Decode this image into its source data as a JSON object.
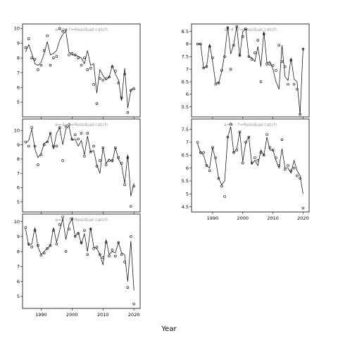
{
  "figure": {
    "xlabel": "Year"
  },
  "chart_data": [
    {
      "type": "line",
      "title": "a=2 : f=Residual catch",
      "xlim": [
        1984,
        2022
      ],
      "ylim": [
        4,
        10.3
      ],
      "xticks": [
        1990,
        2000,
        2010,
        2020
      ],
      "yticks": [
        5,
        6,
        7,
        8,
        9,
        10
      ],
      "x": [
        1985,
        1986,
        1987,
        1988,
        1989,
        1990,
        1991,
        1992,
        1993,
        1994,
        1995,
        1996,
        1997,
        1998,
        1999,
        2000,
        2001,
        2002,
        2003,
        2004,
        2005,
        2006,
        2007,
        2008,
        2009,
        2010,
        2011,
        2012,
        2013,
        2014,
        2015,
        2016,
        2017,
        2018,
        2019,
        2020
      ],
      "series": [
        {
          "style": "points",
          "values": [
            8.7,
            9.3,
            8.0,
            7.9,
            7.2,
            7.5,
            8.5,
            9.5,
            7.5,
            8.0,
            8.1,
            10.0,
            9.8,
            9.9,
            8.2,
            8.3,
            8.2,
            8.0,
            7.5,
            8.0,
            7.2,
            7.3,
            6.2,
            4.9,
            6.6,
            6.5,
            6.6,
            6.7,
            7.4,
            7.1,
            6.3,
            5.3,
            6.9,
            4.3,
            5.8,
            5.9
          ]
        },
        {
          "style": "line",
          "values": [
            8.4,
            8.9,
            8.3,
            7.6,
            7.5,
            7.7,
            8.3,
            9.1,
            8.2,
            8.3,
            8.5,
            9.2,
            9.6,
            9.8,
            8.4,
            8.2,
            8.2,
            8.1,
            8.0,
            7.6,
            8.5,
            7.5,
            7.6,
            5.6,
            7.2,
            6.8,
            6.5,
            6.7,
            7.5,
            6.9,
            6.5,
            5.1,
            7.3,
            4.6,
            5.8,
            6.0
          ]
        }
      ]
    },
    {
      "type": "line",
      "title": "a=4 : f=Residual catch",
      "xlim": [
        1983,
        2022
      ],
      "ylim": [
        5.1,
        8.8
      ],
      "xticks": [
        1990,
        2000,
        2010,
        2020
      ],
      "yticks": [
        5.5,
        6.0,
        6.5,
        7.0,
        7.5,
        8.0,
        8.5
      ],
      "x": [
        1985,
        1986,
        1987,
        1988,
        1989,
        1990,
        1991,
        1992,
        1993,
        1994,
        1995,
        1996,
        1997,
        1998,
        1999,
        2000,
        2001,
        2002,
        2003,
        2004,
        2005,
        2006,
        2007,
        2008,
        2009,
        2010,
        2011,
        2012,
        2013,
        2014,
        2015,
        2016,
        2017,
        2018,
        2019,
        2020
      ],
      "series": [
        {
          "style": "points",
          "values": [
            8.0,
            8.0,
            7.05,
            7.1,
            7.9,
            7.45,
            6.4,
            6.45,
            6.95,
            7.5,
            8.65,
            7.0,
            7.95,
            8.7,
            7.55,
            8.3,
            8.6,
            7.5,
            7.4,
            7.65,
            8.15,
            6.5,
            8.4,
            7.2,
            7.2,
            7.15,
            6.95,
            7.95,
            7.3,
            7.1,
            6.4,
            7.35,
            6.4,
            6.2,
            5.2,
            7.8
          ]
        },
        {
          "style": "line",
          "values": [
            8.0,
            8.0,
            7.05,
            7.1,
            8.0,
            7.3,
            6.45,
            6.45,
            6.9,
            7.6,
            8.7,
            7.6,
            8.0,
            8.7,
            7.5,
            8.5,
            8.6,
            7.5,
            7.45,
            7.3,
            7.9,
            7.1,
            8.5,
            7.25,
            7.3,
            7.0,
            6.5,
            6.2,
            7.95,
            6.7,
            6.55,
            7.45,
            6.6,
            6.5,
            5.2,
            7.85
          ]
        }
      ]
    },
    {
      "type": "line",
      "title": "a=3 : f=Residual catch",
      "xlim": [
        1984,
        2022
      ],
      "ylim": [
        4.3,
        10.8
      ],
      "xticks": [
        1990,
        2000,
        2010,
        2020
      ],
      "yticks": [
        5,
        6,
        7,
        8,
        9,
        10
      ],
      "x": [
        1985,
        1986,
        1987,
        1988,
        1989,
        1990,
        1991,
        1992,
        1993,
        1994,
        1995,
        1996,
        1997,
        1998,
        1999,
        2000,
        2001,
        2002,
        2003,
        2004,
        2005,
        2006,
        2007,
        2008,
        2009,
        2010,
        2011,
        2012,
        2013,
        2014,
        2015,
        2016,
        2017,
        2018,
        2019,
        2020
      ],
      "series": [
        {
          "style": "points",
          "values": [
            9.2,
            8.9,
            10.2,
            8.9,
            7.6,
            8.3,
            9.0,
            9.2,
            9.8,
            8.9,
            8.9,
            10.2,
            7.9,
            10.3,
            10.4,
            9.4,
            9.7,
            9.4,
            9.8,
            8.2,
            9.8,
            8.5,
            8.9,
            7.5,
            7.9,
            8.8,
            7.6,
            7.9,
            7.9,
            8.8,
            8.1,
            7.7,
            6.2,
            8.1,
            4.7,
            6.1
          ]
        },
        {
          "style": "line",
          "values": [
            9.1,
            9.3,
            10.1,
            8.7,
            8.1,
            8.4,
            9.1,
            9.2,
            9.8,
            8.7,
            9.8,
            10.2,
            9.0,
            10.1,
            10.3,
            9.3,
            9.4,
            8.9,
            9.3,
            8.3,
            9.6,
            8.5,
            8.6,
            7.6,
            7.0,
            8.8,
            7.7,
            8.0,
            7.8,
            8.8,
            8.0,
            7.6,
            6.3,
            8.3,
            5.4,
            6.3
          ]
        }
      ]
    },
    {
      "type": "line",
      "title": "a=5 : f=Residual catch",
      "xlim": [
        1983,
        2022
      ],
      "ylim": [
        4.3,
        7.9
      ],
      "xticks": [
        1990,
        2000,
        2010,
        2020
      ],
      "yticks": [
        4.5,
        5.0,
        5.5,
        6.0,
        6.5,
        7.0,
        7.5
      ],
      "x": [
        1985,
        1986,
        1987,
        1988,
        1989,
        1990,
        1991,
        1992,
        1993,
        1994,
        1995,
        1996,
        1997,
        1998,
        1999,
        2000,
        2001,
        2002,
        2003,
        2004,
        2005,
        2006,
        2007,
        2008,
        2009,
        2010,
        2011,
        2012,
        2013,
        2014,
        2015,
        2016,
        2017,
        2018,
        2019,
        2020
      ],
      "series": [
        {
          "style": "points",
          "values": [
            7.0,
            6.6,
            6.6,
            6.1,
            5.9,
            6.8,
            6.4,
            5.6,
            5.3,
            4.9,
            7.2,
            7.7,
            6.6,
            6.7,
            7.4,
            6.2,
            7.0,
            7.2,
            6.2,
            6.4,
            6.3,
            6.6,
            6.5,
            7.3,
            6.8,
            6.7,
            6.4,
            6.1,
            7.1,
            5.95,
            6.1,
            5.9,
            6.0,
            5.7,
            5.6,
            4.45
          ]
        },
        {
          "style": "line",
          "values": [
            6.95,
            6.6,
            6.5,
            6.1,
            6.0,
            6.8,
            6.3,
            5.6,
            5.35,
            5.5,
            7.2,
            7.6,
            6.6,
            6.75,
            7.4,
            6.25,
            7.0,
            7.2,
            6.15,
            6.3,
            6.1,
            6.7,
            6.5,
            7.2,
            6.7,
            6.7,
            6.3,
            6.0,
            6.75,
            6.0,
            6.0,
            5.8,
            6.3,
            5.9,
            5.7,
            5.0
          ]
        }
      ]
    },
    {
      "type": "line",
      "title": "a=1 : f=Residual catch",
      "xlim": [
        1984,
        2022
      ],
      "ylim": [
        4.2,
        10.5
      ],
      "xticks": [
        1990,
        2000,
        2010,
        2020
      ],
      "yticks": [
        5,
        6,
        7,
        8,
        9,
        10
      ],
      "x": [
        1985,
        1986,
        1987,
        1988,
        1989,
        1990,
        1991,
        1992,
        1993,
        1994,
        1995,
        1996,
        1997,
        1998,
        1999,
        2000,
        2001,
        2002,
        2003,
        2004,
        2005,
        2006,
        2007,
        2008,
        2009,
        2010,
        2011,
        2012,
        2013,
        2014,
        2015,
        2016,
        2017,
        2018,
        2019,
        2020
      ],
      "series": [
        {
          "style": "points",
          "values": [
            9.6,
            8.5,
            8.3,
            9.4,
            8.4,
            7.75,
            7.9,
            8.2,
            8.4,
            9.4,
            8.5,
            9.8,
            10.3,
            8.0,
            9.5,
            10.2,
            9.0,
            9.2,
            8.6,
            9.4,
            7.8,
            9.5,
            8.2,
            8.3,
            7.8,
            7.6,
            8.6,
            7.7,
            8.1,
            7.7,
            8.6,
            7.8,
            7.3,
            5.6,
            9.0,
            4.5
          ]
        },
        {
          "style": "line",
          "values": [
            9.5,
            8.4,
            8.5,
            9.6,
            8.3,
            7.8,
            8.0,
            8.2,
            8.4,
            9.6,
            8.6,
            9.4,
            10.2,
            8.8,
            9.8,
            10.2,
            9.0,
            9.3,
            8.5,
            9.2,
            8.0,
            9.6,
            8.3,
            8.2,
            7.8,
            7.1,
            8.8,
            7.8,
            8.0,
            7.9,
            8.6,
            7.9,
            7.8,
            6.0,
            8.7,
            5.4
          ]
        }
      ]
    }
  ]
}
